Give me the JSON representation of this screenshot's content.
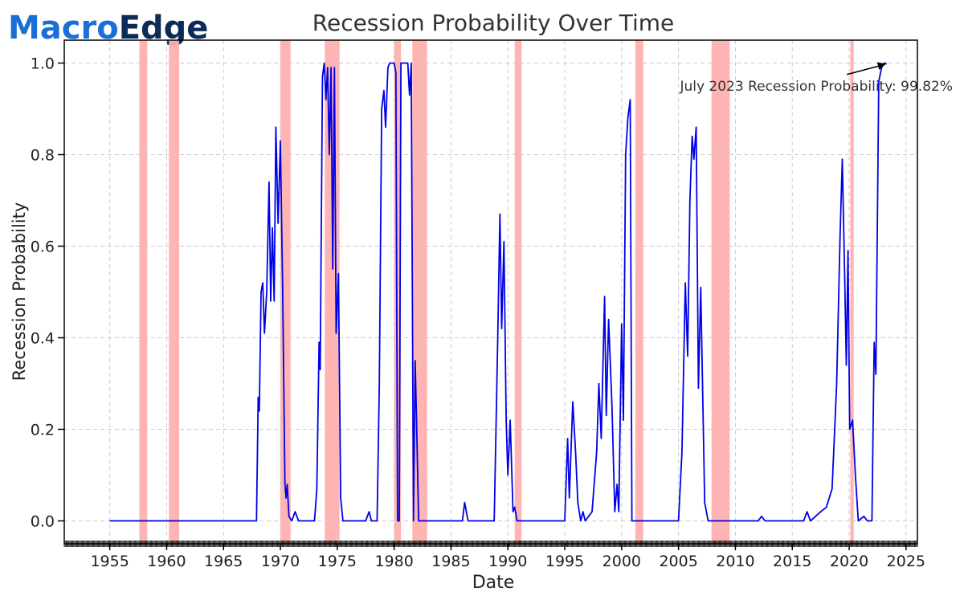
{
  "brand": {
    "logo_part1": "Macro",
    "logo_part2": "Edge",
    "colors": {
      "macro": "#1a6fd6",
      "edge": "#0d2b57"
    }
  },
  "chart_data": {
    "type": "line",
    "title": "Recession Probability Over Time",
    "xlabel": "Date",
    "ylabel": "Recession Probability",
    "xlim": [
      1951,
      2026
    ],
    "ylim": [
      -0.05,
      1.05
    ],
    "xticks": [
      "1955",
      "1960",
      "1965",
      "1970",
      "1975",
      "1980",
      "1985",
      "1990",
      "1995",
      "2000",
      "2005",
      "2010",
      "2015",
      "2020",
      "2025"
    ],
    "yticks": [
      "0.0",
      "0.2",
      "0.4",
      "0.6",
      "0.8",
      "1.0"
    ],
    "grid": true,
    "line_color": "#0000e6",
    "recession_color": "#ffb0b0",
    "recessions": [
      [
        1957.6,
        1958.3
      ],
      [
        1960.2,
        1961.1
      ],
      [
        1970.0,
        1970.9
      ],
      [
        1973.9,
        1975.2
      ],
      [
        1980.0,
        1980.6
      ],
      [
        1981.6,
        1982.9
      ],
      [
        1990.6,
        1991.2
      ],
      [
        2001.2,
        2001.9
      ],
      [
        2007.9,
        2009.5
      ],
      [
        2020.1,
        2020.4
      ]
    ],
    "series": [
      {
        "points": [
          [
            1955.0,
            0.0
          ],
          [
            1967.9,
            0.0
          ],
          [
            1968.05,
            0.27
          ],
          [
            1968.15,
            0.24
          ],
          [
            1968.3,
            0.5
          ],
          [
            1968.45,
            0.52
          ],
          [
            1968.6,
            0.41
          ],
          [
            1968.8,
            0.5
          ],
          [
            1969.0,
            0.74
          ],
          [
            1969.15,
            0.48
          ],
          [
            1969.3,
            0.64
          ],
          [
            1969.45,
            0.48
          ],
          [
            1969.6,
            0.86
          ],
          [
            1969.8,
            0.65
          ],
          [
            1970.0,
            0.83
          ],
          [
            1970.2,
            0.5
          ],
          [
            1970.4,
            0.08
          ],
          [
            1970.5,
            0.05
          ],
          [
            1970.6,
            0.08
          ],
          [
            1970.75,
            0.01
          ],
          [
            1971.0,
            0.0
          ],
          [
            1971.3,
            0.02
          ],
          [
            1971.6,
            0.0
          ],
          [
            1973.0,
            0.0
          ],
          [
            1973.2,
            0.07
          ],
          [
            1973.4,
            0.39
          ],
          [
            1973.5,
            0.33
          ],
          [
            1973.7,
            0.97
          ],
          [
            1973.85,
            1.0
          ],
          [
            1974.0,
            0.92
          ],
          [
            1974.15,
            0.99
          ],
          [
            1974.3,
            0.8
          ],
          [
            1974.45,
            0.99
          ],
          [
            1974.6,
            0.55
          ],
          [
            1974.75,
            0.99
          ],
          [
            1974.9,
            0.41
          ],
          [
            1975.1,
            0.54
          ],
          [
            1975.3,
            0.05
          ],
          [
            1975.5,
            0.0
          ],
          [
            1977.5,
            0.0
          ],
          [
            1977.8,
            0.02
          ],
          [
            1978.0,
            0.0
          ],
          [
            1978.5,
            0.0
          ],
          [
            1978.7,
            0.3
          ],
          [
            1978.9,
            0.9
          ],
          [
            1979.1,
            0.94
          ],
          [
            1979.25,
            0.86
          ],
          [
            1979.45,
            0.99
          ],
          [
            1979.6,
            1.0
          ],
          [
            1980.0,
            1.0
          ],
          [
            1980.15,
            0.98
          ],
          [
            1980.3,
            0.0
          ],
          [
            1980.45,
            0.0
          ],
          [
            1980.6,
            1.0
          ],
          [
            1981.2,
            1.0
          ],
          [
            1981.35,
            0.93
          ],
          [
            1981.5,
            1.0
          ],
          [
            1981.7,
            0.0
          ],
          [
            1981.85,
            0.35
          ],
          [
            1982.0,
            0.18
          ],
          [
            1982.15,
            0.0
          ],
          [
            1982.6,
            0.0
          ],
          [
            1986.0,
            0.0
          ],
          [
            1986.2,
            0.04
          ],
          [
            1986.5,
            0.0
          ],
          [
            1988.8,
            0.0
          ],
          [
            1989.1,
            0.39
          ],
          [
            1989.3,
            0.67
          ],
          [
            1989.45,
            0.42
          ],
          [
            1989.65,
            0.61
          ],
          [
            1989.85,
            0.22
          ],
          [
            1990.0,
            0.1
          ],
          [
            1990.2,
            0.22
          ],
          [
            1990.45,
            0.02
          ],
          [
            1990.6,
            0.03
          ],
          [
            1990.8,
            0.0
          ],
          [
            1995.0,
            0.0
          ],
          [
            1995.25,
            0.18
          ],
          [
            1995.4,
            0.05
          ],
          [
            1995.7,
            0.26
          ],
          [
            1995.95,
            0.15
          ],
          [
            1996.15,
            0.04
          ],
          [
            1996.4,
            0.0
          ],
          [
            1996.6,
            0.02
          ],
          [
            1996.8,
            0.0
          ],
          [
            1997.4,
            0.02
          ],
          [
            1997.8,
            0.15
          ],
          [
            1998.0,
            0.3
          ],
          [
            1998.2,
            0.18
          ],
          [
            1998.5,
            0.49
          ],
          [
            1998.65,
            0.23
          ],
          [
            1998.85,
            0.44
          ],
          [
            1999.15,
            0.25
          ],
          [
            1999.4,
            0.02
          ],
          [
            1999.6,
            0.08
          ],
          [
            1999.75,
            0.02
          ],
          [
            2000.0,
            0.43
          ],
          [
            2000.15,
            0.22
          ],
          [
            2000.35,
            0.8
          ],
          [
            2000.55,
            0.88
          ],
          [
            2000.75,
            0.92
          ],
          [
            2000.9,
            0.0
          ],
          [
            2001.2,
            0.0
          ],
          [
            2005.0,
            0.0
          ],
          [
            2005.3,
            0.15
          ],
          [
            2005.6,
            0.52
          ],
          [
            2005.8,
            0.36
          ],
          [
            2006.0,
            0.7
          ],
          [
            2006.2,
            0.84
          ],
          [
            2006.35,
            0.79
          ],
          [
            2006.55,
            0.86
          ],
          [
            2006.75,
            0.29
          ],
          [
            2006.95,
            0.51
          ],
          [
            2007.3,
            0.04
          ],
          [
            2007.6,
            0.0
          ],
          [
            2012.0,
            0.0
          ],
          [
            2012.3,
            0.01
          ],
          [
            2012.6,
            0.0
          ],
          [
            2016.0,
            0.0
          ],
          [
            2016.3,
            0.02
          ],
          [
            2016.6,
            0.0
          ],
          [
            2017.5,
            0.02
          ],
          [
            2018.0,
            0.03
          ],
          [
            2018.5,
            0.07
          ],
          [
            2018.9,
            0.3
          ],
          [
            2019.2,
            0.62
          ],
          [
            2019.4,
            0.79
          ],
          [
            2019.6,
            0.54
          ],
          [
            2019.75,
            0.34
          ],
          [
            2019.9,
            0.59
          ],
          [
            2020.05,
            0.2
          ],
          [
            2020.3,
            0.22
          ],
          [
            2020.55,
            0.1
          ],
          [
            2020.8,
            0.0
          ],
          [
            2021.3,
            0.01
          ],
          [
            2021.6,
            0.0
          ],
          [
            2022.0,
            0.0
          ],
          [
            2022.2,
            0.39
          ],
          [
            2022.35,
            0.32
          ],
          [
            2022.6,
            0.96
          ],
          [
            2022.85,
            0.99
          ],
          [
            2023.1,
            1.0
          ],
          [
            2023.3,
            0.998
          ]
        ]
      }
    ],
    "annotation": {
      "text": "July 2023 Recession Probability: 99.82%",
      "point": [
        2023.3,
        0.998
      ],
      "label_at": [
        2019.8,
        0.975
      ]
    }
  }
}
